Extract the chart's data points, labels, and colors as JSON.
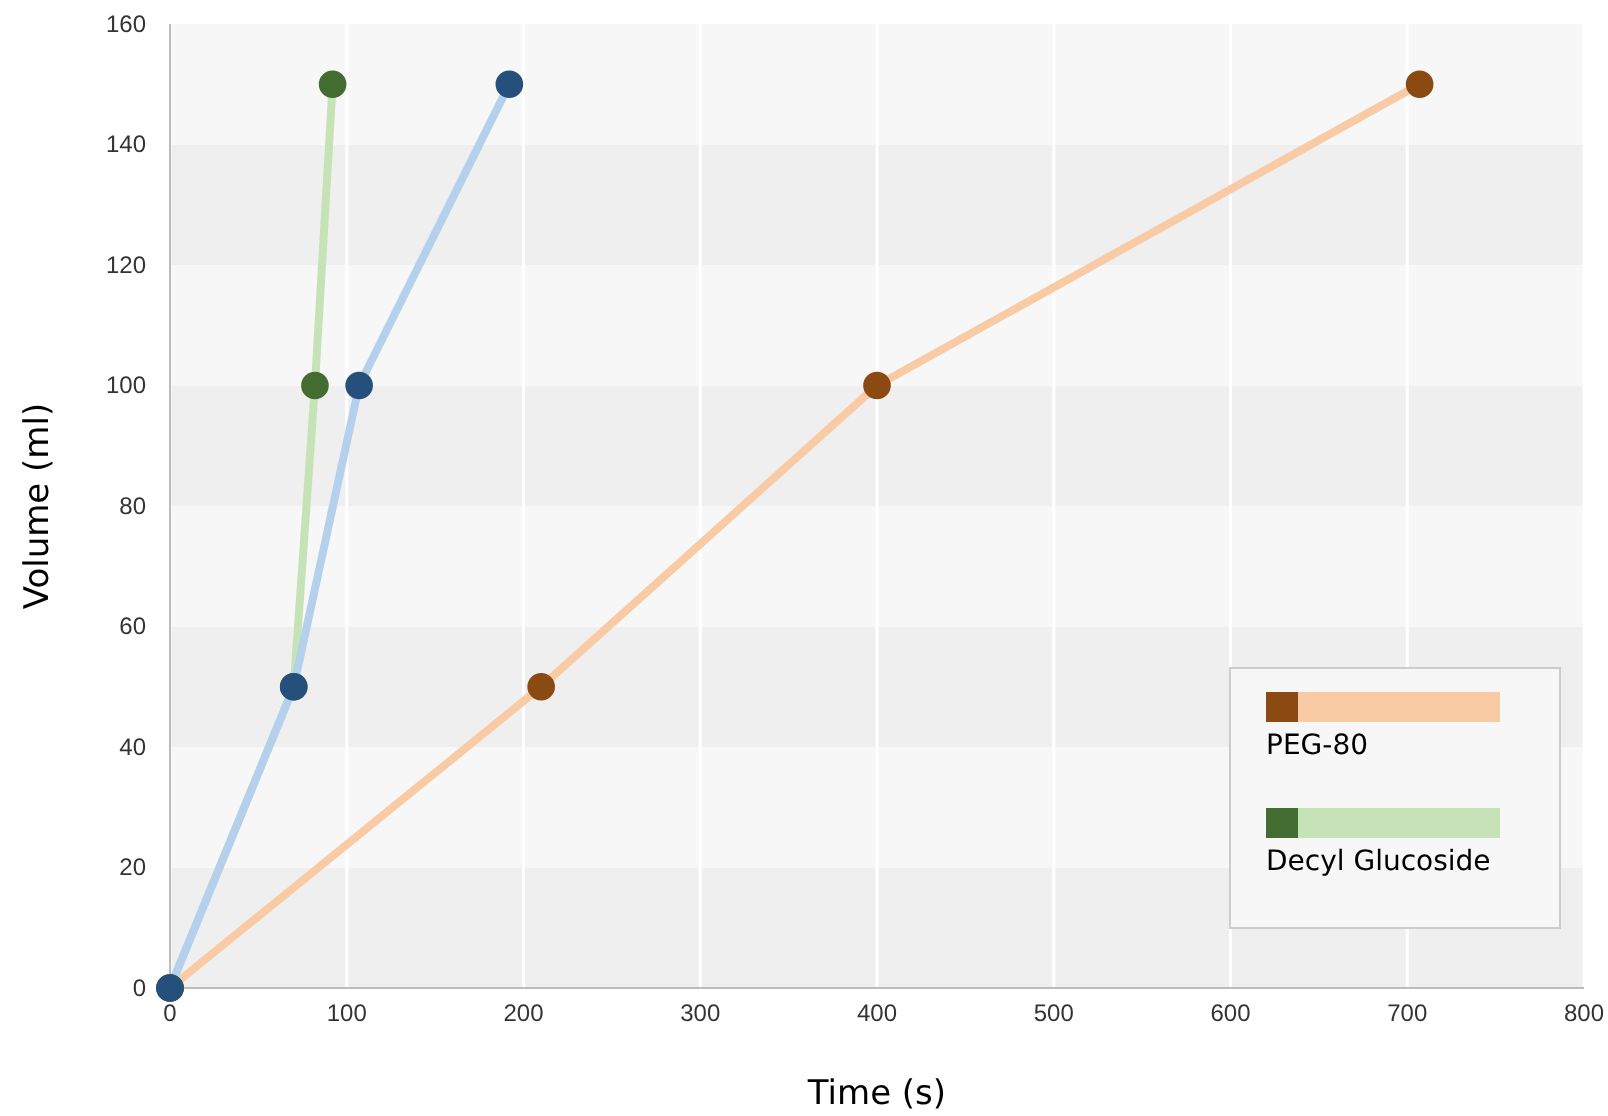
{
  "chart_data": {
    "type": "line",
    "xlabel": "Time (s)",
    "ylabel": "Volume (ml)",
    "xlim": [
      0,
      800
    ],
    "ylim": [
      0,
      160
    ],
    "xticks": [
      0,
      100,
      200,
      300,
      400,
      500,
      600,
      700,
      800
    ],
    "yticks": [
      0,
      20,
      40,
      60,
      80,
      100,
      120,
      140,
      160
    ],
    "grid": true,
    "legend": "bottom right",
    "marker": "circle",
    "line_style": "solid",
    "series": [
      {
        "name": "PEG-80",
        "color": "#f8cba4",
        "x": [
          0,
          210,
          400,
          707
        ],
        "values": [
          0,
          50,
          100,
          150
        ]
      },
      {
        "name": "Decyl Glucoside",
        "color": "#c6e3b8",
        "x": [
          0,
          70,
          82,
          92
        ],
        "values": [
          0,
          50,
          100,
          150
        ]
      },
      {
        "color": "#b4d0ec",
        "x": [
          0,
          70,
          107,
          192
        ],
        "values": [
          0,
          50,
          100,
          150
        ]
      }
    ]
  }
}
